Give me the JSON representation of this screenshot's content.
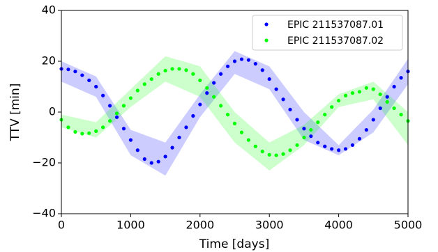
{
  "chart_data": {
    "type": "scatter",
    "xlabel": "Time [days]",
    "ylabel": "TTV [min]",
    "xlim": [
      0,
      5000
    ],
    "xticks": [
      0,
      1000,
      2000,
      3000,
      4000,
      5000
    ],
    "ylim": [
      -40,
      40
    ],
    "yticks": [
      {
        "value": -40,
        "label": "−40"
      },
      {
        "value": -20,
        "label": "−20"
      },
      0,
      20,
      40
    ],
    "legend": "upper right",
    "x": [
      0,
      100,
      200,
      300,
      400,
      500,
      600,
      700,
      800,
      900,
      1000,
      1100,
      1200,
      1300,
      1400,
      1500,
      1600,
      1700,
      1800,
      1900,
      2000,
      2100,
      2200,
      2300,
      2400,
      2500,
      2600,
      2700,
      2800,
      2900,
      3000,
      3100,
      3200,
      3300,
      3400,
      3500,
      3600,
      3700,
      3800,
      3900,
      4000,
      4100,
      4200,
      4300,
      4400,
      4500,
      4600,
      4700,
      4800,
      4900,
      5000
    ],
    "series": [
      {
        "name": "EPIC 211537087.01",
        "color": "#0000ff",
        "values": [
          17,
          16.8,
          16,
          14.5,
          12.5,
          10,
          6.5,
          2.5,
          -2,
          -6.5,
          -11,
          -15,
          -18.5,
          -20,
          -19.5,
          -17.5,
          -14,
          -10,
          -6,
          -1.5,
          3,
          7.5,
          11.5,
          15,
          18,
          20,
          20.8,
          20.5,
          19,
          16.5,
          13,
          9,
          5,
          1,
          -3,
          -6.5,
          -9.5,
          -12,
          -13.5,
          -14.5,
          -15,
          -14.5,
          -13,
          -10.5,
          -7,
          -3,
          1.5,
          6,
          10,
          13.5,
          16
        ],
        "band": {
          "x": [
            0,
            500,
            1000,
            1500,
            2000,
            2500,
            3000,
            3500,
            4000,
            4500,
            5000
          ],
          "lower": [
            12,
            6,
            -17,
            -25,
            -2,
            15,
            9,
            -11,
            -17,
            -8,
            11
          ],
          "upper": [
            20,
            14,
            -7,
            -12,
            7,
            24,
            18,
            0,
            -13,
            1,
            21
          ]
        }
      },
      {
        "name": "EPIC 211537087.02",
        "color": "#00ff00",
        "values": [
          -3,
          -6,
          -7.8,
          -8.5,
          -8.3,
          -7.5,
          -6,
          -3.5,
          -0.5,
          2.5,
          5.5,
          8.5,
          11,
          13,
          15,
          16.3,
          17,
          17,
          16.5,
          15,
          12.5,
          9.5,
          6,
          2.5,
          -1,
          -4.5,
          -8,
          -11,
          -13.5,
          -15.5,
          -16.8,
          -17,
          -16.5,
          -15,
          -13,
          -10,
          -7,
          -4,
          -1,
          2,
          4.5,
          6.5,
          7.5,
          8,
          9.5,
          9,
          7,
          4,
          1.5,
          -1,
          -3.5
        ],
        "band": {
          "x": [
            0,
            500,
            1000,
            1500,
            2000,
            2500,
            3000,
            3500,
            4000,
            4500,
            5000
          ],
          "lower": [
            -6,
            -10,
            2,
            12,
            6,
            -12,
            -23,
            -13,
            2,
            5,
            -13
          ],
          "upper": [
            -1,
            -4,
            9,
            22,
            18,
            0,
            -12,
            -5,
            7,
            12,
            0
          ]
        }
      }
    ]
  }
}
